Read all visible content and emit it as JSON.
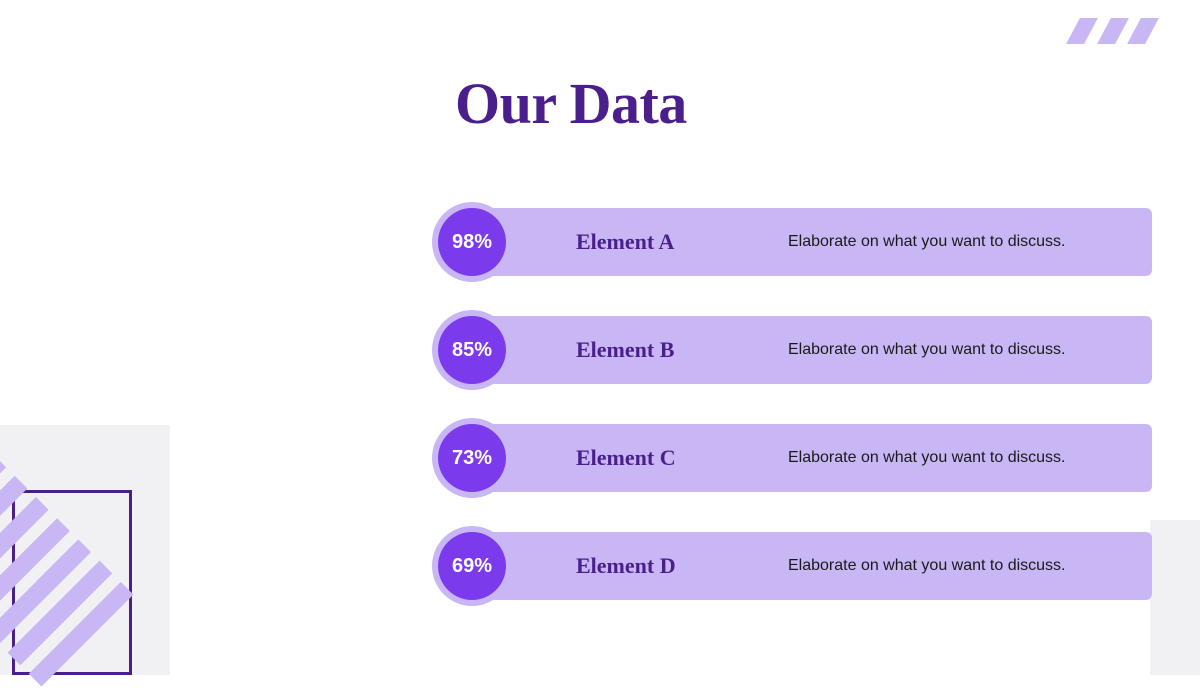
{
  "title": "Our Data",
  "colors": {
    "title": "#4a1f8c",
    "bar_bg": "#c8b6f5",
    "circle_outer": "#c8b6f5",
    "circle_inner": "#7c3aed",
    "label": "#4a1f8c",
    "desc": "#1a1a1a",
    "decor_light": "#c8b6f5",
    "decor_box": "#f1f1f3",
    "decor_outline": "#4a1f8c"
  },
  "items": [
    {
      "percent": "98%",
      "label": "Element A",
      "desc": "Elaborate on what you want to discuss."
    },
    {
      "percent": "85%",
      "label": "Element B",
      "desc": "Elaborate on what you want to discuss."
    },
    {
      "percent": "73%",
      "label": "Element C",
      "desc": "Elaborate on what you want to discuss."
    },
    {
      "percent": "69%",
      "label": "Element D",
      "desc": "Elaborate on what you want to discuss."
    }
  ]
}
